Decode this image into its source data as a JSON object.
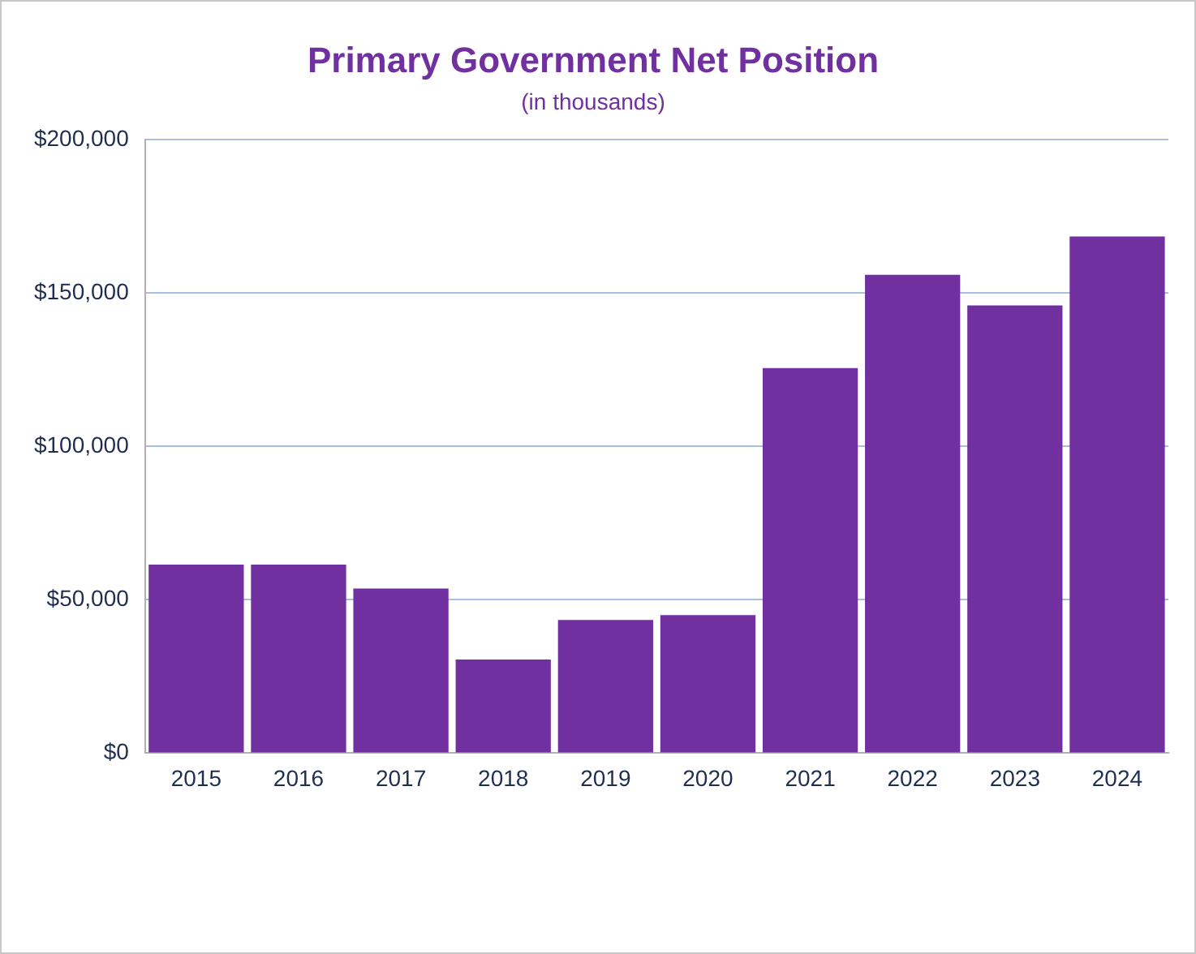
{
  "chart_data": {
    "type": "bar",
    "title": "Primary Government Net Position",
    "subtitle": "(in thousands)",
    "categories": [
      "2015",
      "2016",
      "2017",
      "2018",
      "2019",
      "2020",
      "2021",
      "2022",
      "2023",
      "2024"
    ],
    "values": [
      61500,
      61500,
      53700,
      30500,
      43400,
      45000,
      125600,
      156000,
      146000,
      168500
    ],
    "color": "#7030a0",
    "ylim": [
      0,
      200000
    ],
    "yticks": [
      {
        "value": 0,
        "label": "$0"
      },
      {
        "value": 50000,
        "label": "$50,000"
      },
      {
        "value": 100000,
        "label": "$100,000"
      },
      {
        "value": 150000,
        "label": "$150,000"
      },
      {
        "value": 200000,
        "label": "$200,000"
      }
    ],
    "grid": "y",
    "legend": false
  }
}
